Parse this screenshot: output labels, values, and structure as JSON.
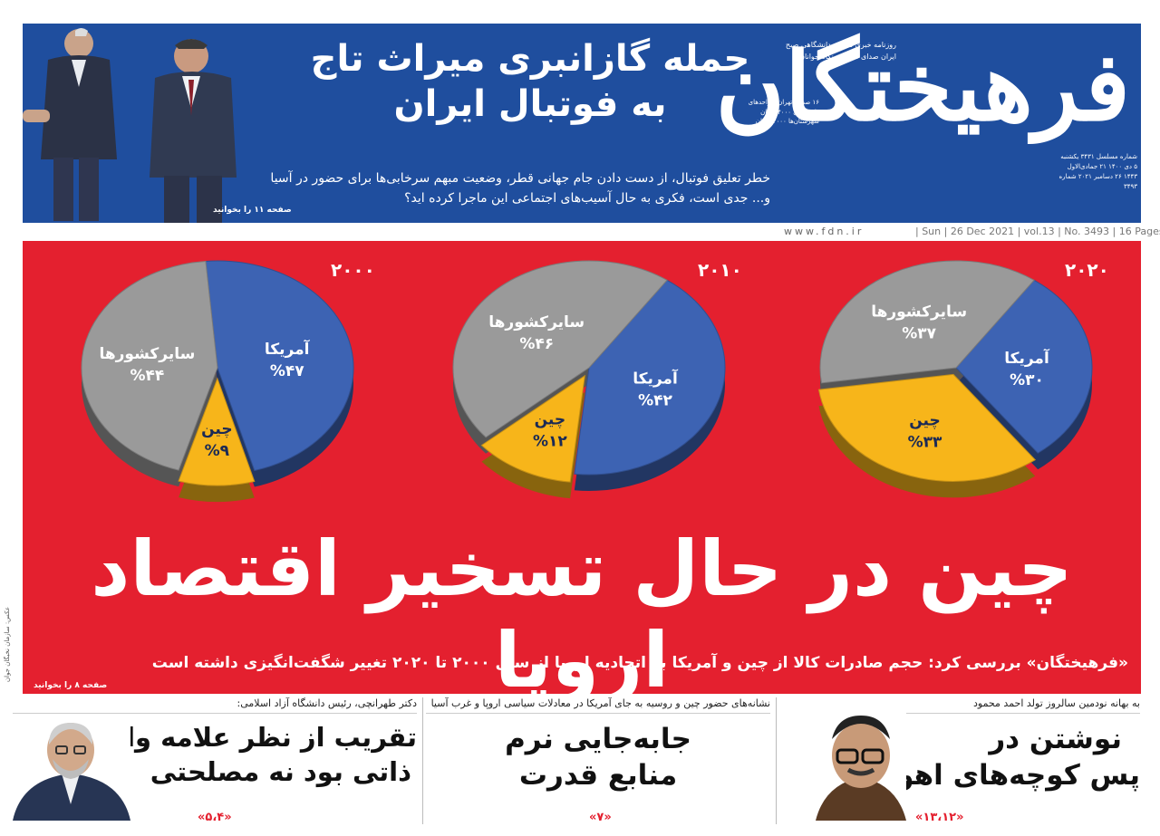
{
  "masthead": {
    "logo_line1": "فرهیختگان",
    "tagline": "روزنامه خبری تحلیلی دانشگاهی صبح ایران  صدای نخبگان، نگاه جوانان",
    "pages_info": "۱۶ صفحه  تهران و واحدهای دانشگاهی ۴۰۰۰ تومان  شهرستان‌ها ۴۰۰۰ تومان",
    "issue_info": "شماره مسلسل ۳۴۳۱  یکشنبه ۵ دی ۱۴۰۰  ۲۱ جمادی‌الاول ۱۴۴۳  ۲۶ دسامبر ۲۰۲۱  شماره ۳۴۹۳",
    "headline_l1": "حمله گازانبری میراث تاج",
    "headline_l2": "به فوتبال ایران",
    "lead": "خطر تعلیق فوتبال، از دست دادن جام جهانی قطر، وضعیت مبهم سرخابی‌ها برای حضور در آسیا و... جدی است، فکری به حال آسیب‌های اجتماعی این ماجرا کرده اید؟",
    "page_ref": "صفحه ۱۱ را بخوانید"
  },
  "dateline": {
    "site": "www.fdn.ir",
    "meta": "| Sun | 26 Dec 2021 | vol.13 | No. 3493 | 16 Pages"
  },
  "charts_labels": {
    "china": "چین",
    "usa": "آمریکا",
    "others": "سایرکشورها"
  },
  "chart_data": [
    {
      "type": "pie",
      "title": "۲۰۲۰",
      "categories": [
        "آمریکا",
        "چین",
        "سایرکشورها"
      ],
      "values": [
        30,
        33,
        37
      ],
      "labels": [
        "%۳۰",
        "%۳۳",
        "%۳۷"
      ],
      "colors": [
        "#3d63b3",
        "#f7b51a",
        "#9a9a9a"
      ]
    },
    {
      "type": "pie",
      "title": "۲۰۱۰",
      "categories": [
        "آمریکا",
        "چین",
        "سایرکشورها"
      ],
      "values": [
        42,
        12,
        46
      ],
      "labels": [
        "%۴۲",
        "%۱۲",
        "%۴۶"
      ],
      "colors": [
        "#3d63b3",
        "#f7b51a",
        "#9a9a9a"
      ]
    },
    {
      "type": "pie",
      "title": "۲۰۰۰",
      "categories": [
        "آمریکا",
        "چین",
        "سایرکشورها"
      ],
      "values": [
        47,
        9,
        44
      ],
      "labels": [
        "%۴۷",
        "%۹",
        "%۴۴"
      ],
      "colors": [
        "#3d63b3",
        "#f7b51a",
        "#9a9a9a"
      ]
    }
  ],
  "red_panel": {
    "headline": "چین در حال تسخیر اقتصاد اروپا",
    "lead": "«فرهیختگان» بررسی کرد: حجم صادرات کالا از چین و آمریکا به اتحادیه اروپا از سال ۲۰۰۰ تا ۲۰۲۰ تغییر شگفت‌انگیزی داشته است",
    "page_ref": "صفحه ۸ را بخوانید"
  },
  "side_note": "عکس: سازمان نخبگان جوان",
  "bottom": [
    {
      "kicker": "به بهانه نودمین سالروز تولد احمد محمود",
      "title_l1": "نوشتن در",
      "title_l2": "پس کوچه‌های اهواز",
      "pages": "«۱۳،۱۲»"
    },
    {
      "kicker": "نشانه‌های حضور چین و روسیه به جای آمریکا در معادلات سیاسی اروپا و غرب آسیا",
      "title_l1": "جابه‌جایی نرم",
      "title_l2": "منابع قدرت",
      "pages": "«۷»"
    },
    {
      "kicker": "دکتر طهرانچی، رئیس دانشگاه آزاد اسلامی:",
      "title_l1": "تقریب از نظر علامه واعظ‌زاده",
      "title_l2": "ذاتی بود نه مصلحتی",
      "pages": "«۵،۴»"
    }
  ]
}
